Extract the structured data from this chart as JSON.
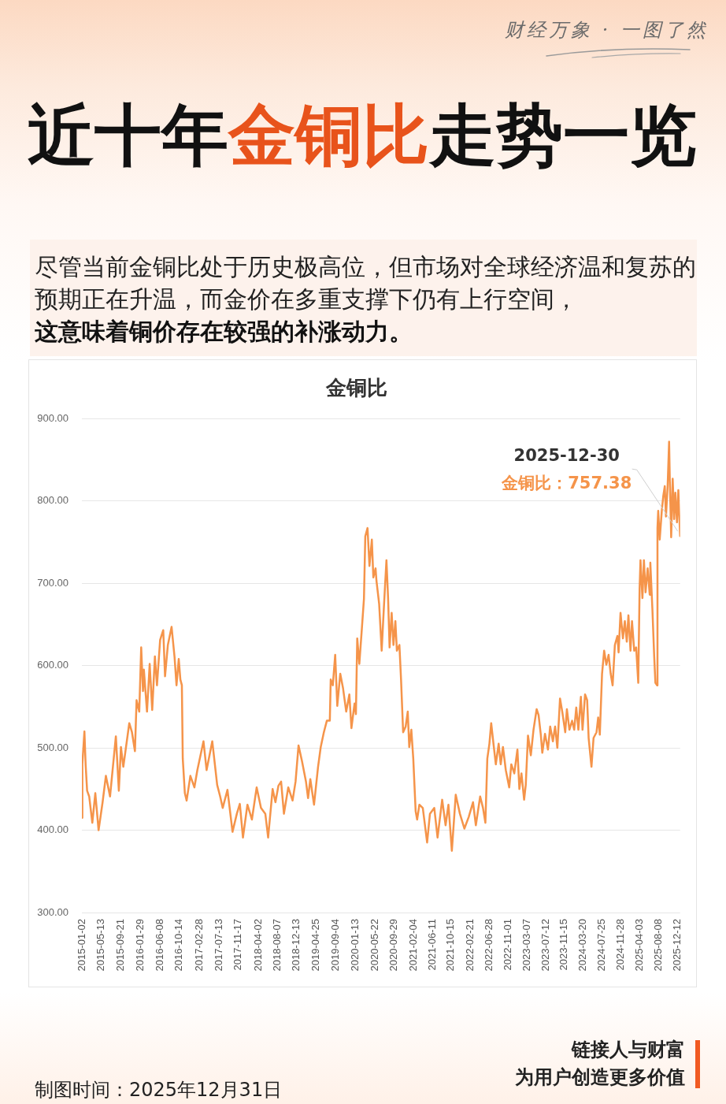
{
  "chart_data": {
    "type": "line",
    "title": "近十年金铜比走势一览",
    "subtitle": "金铜比",
    "annotations": [
      "财经万象 · 一图了然",
      "尽管当前金铜比处于历史极高位，但市场对全球经济温和复苏的预期正在升温，而金价在多重支撑下仍有上行空间，",
      "这意味着铜价存在较强的补涨动力。",
      {
        "text": "2025-12-30",
        "x": "2025-12-30",
        "y": 757.38
      },
      {
        "text": "金铜比：757.38",
        "x": "2025-12-30",
        "y": 757.38
      },
      "制图时间：2025年12月31日",
      "链接人与财富",
      "为用户创造更多价值"
    ],
    "x": [
      "2015-01-02",
      "2015-01-05",
      "2015-01-19",
      "2015-01-27",
      "2015-02-06",
      "2015-02-20",
      "2015-03-13",
      "2015-04-02",
      "2015-04-24",
      "2015-05-21",
      "2015-06-12",
      "2015-07-10",
      "2015-08-18",
      "2015-09-07",
      "2015-09-21",
      "2015-10-07",
      "2015-11-16",
      "2015-12-04",
      "2015-12-24",
      "2016-01-04",
      "2016-01-22",
      "2016-02-04",
      "2016-02-16",
      "2016-02-22",
      "2016-03-14",
      "2016-04-01",
      "2016-04-18",
      "2016-05-06",
      "2016-05-20",
      "2016-06-10",
      "2016-07-01",
      "2016-07-13",
      "2016-08-01",
      "2016-08-26",
      "2016-09-15",
      "2016-09-28",
      "2016-10-13",
      "2016-10-24",
      "2016-11-03",
      "2016-11-09",
      "2016-11-23",
      "2016-12-05",
      "2016-12-30",
      "2017-01-26",
      "2017-02-15",
      "2017-03-28",
      "2017-04-18",
      "2017-05-26",
      "2017-06-28",
      "2017-07-18",
      "2017-08-04",
      "2017-09-05",
      "2017-10-09",
      "2017-11-07",
      "2017-11-27",
      "2017-12-18",
      "2018-01-17",
      "2018-02-16",
      "2018-03-20",
      "2018-04-18",
      "2018-05-17",
      "2018-06-05",
      "2018-07-05",
      "2018-07-24",
      "2018-08-13",
      "2018-08-31",
      "2018-09-19",
      "2018-10-18",
      "2018-11-16",
      "2018-12-06",
      "2018-12-26",
      "2019-01-18",
      "2019-02-14",
      "2019-02-28",
      "2019-03-15",
      "2019-04-09",
      "2019-05-06",
      "2019-05-24",
      "2019-06-14",
      "2019-07-04",
      "2019-07-24",
      "2019-07-30",
      "2019-08-13",
      "2019-08-29",
      "2019-09-12",
      "2019-10-02",
      "2019-10-21",
      "2019-11-11",
      "2019-12-02",
      "2019-12-16",
      "2020-01-06",
      "2020-01-15",
      "2020-01-24",
      "2020-02-07",
      "2020-02-24",
      "2020-03-09",
      "2020-03-18",
      "2020-04-02",
      "2020-04-15",
      "2020-05-01",
      "2020-05-11",
      "2020-05-26",
      "2020-06-01",
      "2020-06-19",
      "2020-07-06",
      "2020-07-20",
      "2020-08-07",
      "2020-08-18",
      "2020-08-28",
      "2020-09-11",
      "2020-09-23",
      "2020-10-06",
      "2020-10-16",
      "2020-11-02",
      "2020-11-13",
      "2020-11-27",
      "2020-12-14",
      "2020-12-28",
      "2021-01-07",
      "2021-01-21",
      "2021-02-03",
      "2021-02-19",
      "2021-03-01",
      "2021-03-16",
      "2021-04-08",
      "2021-05-07",
      "2021-05-26",
      "2021-06-24",
      "2021-07-16",
      "2021-08-16",
      "2021-09-08",
      "2021-09-27",
      "2021-10-20",
      "2021-11-15",
      "2021-12-13",
      "2022-01-12",
      "2022-02-10",
      "2022-03-11",
      "2022-03-30",
      "2022-04-28",
      "2022-05-17",
      "2022-06-02",
      "2022-06-15",
      "2022-06-29",
      "2022-07-11",
      "2022-07-22",
      "2022-08-11",
      "2022-08-30",
      "2022-09-13",
      "2022-09-28",
      "2022-10-17",
      "2022-11-09",
      "2022-11-23",
      "2022-12-13",
      "2023-01-03",
      "2023-01-16",
      "2023-01-30",
      "2023-02-17",
      "2023-02-28",
      "2023-03-15",
      "2023-04-03",
      "2023-04-21",
      "2023-05-12",
      "2023-05-25",
      "2023-06-09",
      "2023-06-19",
      "2023-07-07",
      "2023-07-27",
      "2023-08-11",
      "2023-08-29",
      "2023-09-13",
      "2023-09-28",
      "2023-10-16",
      "2023-10-31",
      "2023-11-20",
      "2023-12-01",
      "2023-12-18",
      "2024-01-05",
      "2024-01-19",
      "2024-02-02",
      "2024-02-16",
      "2024-03-04",
      "2024-03-15",
      "2024-04-01",
      "2024-04-15",
      "2024-04-25",
      "2024-05-14",
      "2024-05-28",
      "2024-06-17",
      "2024-06-28",
      "2024-07-09",
      "2024-07-24",
      "2024-08-07",
      "2024-08-22",
      "2024-09-06",
      "2024-09-20",
      "2024-10-03",
      "2024-10-18",
      "2024-11-04",
      "2024-11-12",
      "2024-11-25",
      "2024-12-11",
      "2024-12-24",
      "2025-01-06",
      "2025-01-17",
      "2025-01-31",
      "2025-02-10",
      "2025-02-25",
      "2025-03-10",
      "2025-03-24",
      "2025-04-02",
      "2025-04-08",
      "2025-04-21",
      "2025-05-01",
      "2025-05-12",
      "2025-05-26",
      "2025-06-09",
      "2025-06-13",
      "2025-06-27",
      "2025-07-09",
      "2025-07-17",
      "2025-07-29",
      "2025-07-31",
      "2025-08-05",
      "2025-08-15",
      "2025-08-29",
      "2025-09-08",
      "2025-09-18",
      "2025-09-26",
      "2025-10-07",
      "2025-10-17",
      "2025-10-22",
      "2025-10-31",
      "2025-11-10",
      "2025-11-20",
      "2025-11-28",
      "2025-12-09",
      "2025-12-18",
      "2025-12-30"
    ],
    "values": [
      415,
      480,
      520,
      480,
      448,
      441,
      409,
      445,
      400,
      434,
      466,
      441,
      514,
      448,
      501,
      477,
      530,
      519,
      496,
      558,
      544,
      622,
      569,
      595,
      544,
      602,
      546,
      611,
      576,
      631,
      643,
      587,
      625,
      647,
      610,
      576,
      608,
      583,
      576,
      487,
      445,
      436,
      466,
      452,
      473,
      508,
      473,
      508,
      455,
      441,
      427,
      449,
      398,
      420,
      432,
      391,
      431,
      413,
      452,
      427,
      420,
      391,
      450,
      434,
      454,
      459,
      420,
      452,
      436,
      459,
      503,
      484,
      459,
      439,
      462,
      431,
      477,
      501,
      519,
      533,
      533,
      583,
      576,
      613,
      551,
      590,
      572,
      544,
      565,
      524,
      554,
      541,
      633,
      602,
      645,
      681,
      757,
      767,
      721,
      753,
      707,
      718,
      703,
      675,
      618,
      668,
      728,
      682,
      622,
      664,
      625,
      654,
      618,
      625,
      583,
      519,
      526,
      544,
      501,
      522,
      487,
      423,
      413,
      431,
      427,
      385,
      420,
      427,
      391,
      437,
      406,
      431,
      375,
      443,
      420,
      402,
      416,
      434,
      406,
      441,
      427,
      409,
      487,
      505,
      530,
      512,
      480,
      505,
      480,
      501,
      473,
      452,
      480,
      469,
      498,
      450,
      469,
      437,
      455,
      515,
      491,
      522,
      547,
      540,
      516,
      494,
      517,
      498,
      526,
      508,
      526,
      500,
      560,
      544,
      519,
      547,
      522,
      533,
      522,
      549,
      522,
      562,
      522,
      565,
      558,
      512,
      477,
      512,
      519,
      537,
      516,
      590,
      618,
      601,
      613,
      590,
      576,
      625,
      636,
      616,
      664,
      633,
      654,
      629,
      661,
      618,
      654,
      618,
      622,
      579,
      693,
      728,
      682,
      728,
      689,
      718,
      686,
      725,
      668,
      611,
      579,
      576,
      767,
      788,
      753,
      788,
      806,
      818,
      781,
      817,
      872,
      824,
      756,
      827,
      778,
      810,
      774,
      813,
      757.38
    ],
    "color": "#f5944a",
    "marker": "none",
    "line_style": "solid",
    "grid": "y",
    "xlim": [
      "2015-01-02",
      "2025-12-30"
    ],
    "xticks": [
      "2015-01-02",
      "2015-05-13",
      "2015-09-21",
      "2016-01-29",
      "2016-06-08",
      "2016-10-14",
      "2017-02-28",
      "2017-07-13",
      "2017-11-17",
      "2018-04-02",
      "2018-08-07",
      "2018-12-13",
      "2019-04-25",
      "2019-09-04",
      "2020-01-13",
      "2020-05-22",
      "2020-09-29",
      "2021-02-04",
      "2021-06-11",
      "2021-10-15",
      "2022-02-21",
      "2022-06-28",
      "2022-11-01",
      "2023-03-07",
      "2023-07-12",
      "2023-11-15",
      "2024-03-20",
      "2024-07-25",
      "2024-11-28",
      "2025-04-03",
      "2025-08-08",
      "2025-12-12"
    ],
    "ylim": [
      300,
      900
    ],
    "yticks": [
      {
        "value": 300,
        "label": "300.00"
      },
      {
        "value": 400,
        "label": "400.00"
      },
      {
        "value": 500,
        "label": "500.00"
      },
      {
        "value": 600,
        "label": "600.00"
      },
      {
        "value": 700,
        "label": "700.00"
      },
      {
        "value": 800,
        "label": "800.00"
      },
      {
        "value": 900,
        "label": "900.00"
      }
    ]
  }
}
